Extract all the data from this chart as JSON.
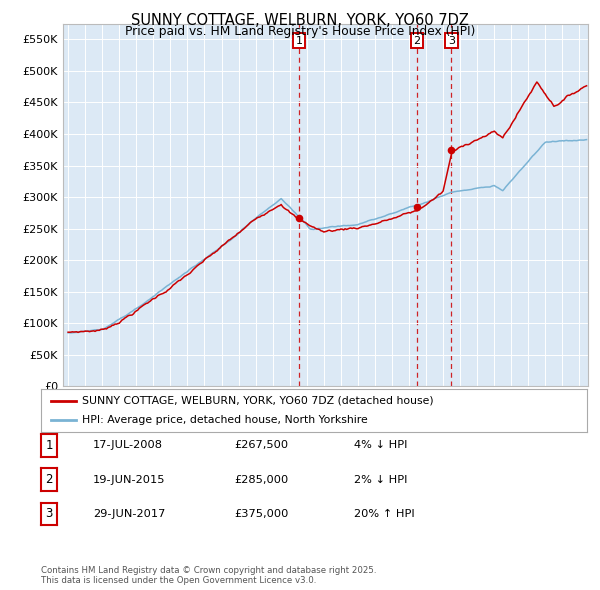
{
  "title": "SUNNY COTTAGE, WELBURN, YORK, YO60 7DZ",
  "subtitle": "Price paid vs. HM Land Registry's House Price Index (HPI)",
  "plot_bg_color": "#dce9f5",
  "ylim": [
    0,
    575000
  ],
  "yticks": [
    0,
    50000,
    100000,
    150000,
    200000,
    250000,
    300000,
    350000,
    400000,
    450000,
    500000,
    550000
  ],
  "ytick_labels": [
    "£0",
    "£50K",
    "£100K",
    "£150K",
    "£200K",
    "£250K",
    "£300K",
    "£350K",
    "£400K",
    "£450K",
    "£500K",
    "£550K"
  ],
  "xlim_start": 1994.7,
  "xlim_end": 2025.5,
  "sale_dates": [
    2008.54,
    2015.47,
    2017.49
  ],
  "sale_prices": [
    267500,
    285000,
    375000
  ],
  "sale_labels": [
    "1",
    "2",
    "3"
  ],
  "legend_line1": "SUNNY COTTAGE, WELBURN, YORK, YO60 7DZ (detached house)",
  "legend_line2": "HPI: Average price, detached house, North Yorkshire",
  "table_entries": [
    {
      "num": "1",
      "date": "17-JUL-2008",
      "price": "£267,500",
      "pct": "4% ↓ HPI"
    },
    {
      "num": "2",
      "date": "19-JUN-2015",
      "price": "£285,000",
      "pct": "2% ↓ HPI"
    },
    {
      "num": "3",
      "date": "29-JUN-2017",
      "price": "£375,000",
      "pct": "20% ↑ HPI"
    }
  ],
  "footer": "Contains HM Land Registry data © Crown copyright and database right 2025.\nThis data is licensed under the Open Government Licence v3.0.",
  "red_color": "#cc0000",
  "blue_color": "#7ab3d4"
}
